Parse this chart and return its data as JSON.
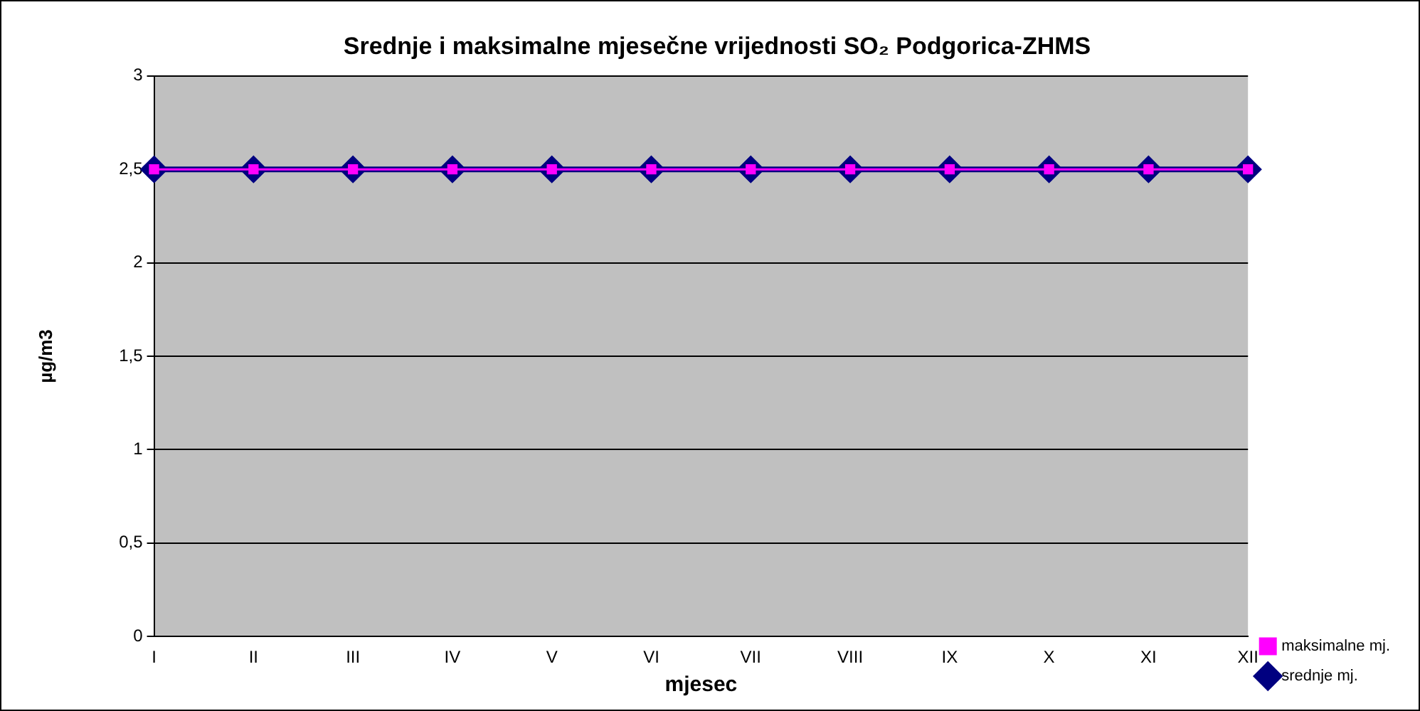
{
  "chart_data": {
    "type": "line",
    "title": "Srednje i maksimalne mjesečne vrijednosti SO₂ Podgorica-ZHMS",
    "xlabel": "mjesec",
    "ylabel": "µg/m3",
    "categories": [
      "I",
      "II",
      "III",
      "IV",
      "V",
      "VI",
      "VII",
      "VIII",
      "IX",
      "X",
      "XI",
      "XII"
    ],
    "series": [
      {
        "name": "srednje mj.",
        "color": "#000080",
        "marker": "diamond",
        "values": [
          2.5,
          2.5,
          2.5,
          2.5,
          2.5,
          2.5,
          2.5,
          2.5,
          2.5,
          2.5,
          2.5,
          2.5
        ]
      },
      {
        "name": "maksimalne mj.",
        "color": "#ff00ff",
        "marker": "square",
        "values": [
          2.5,
          2.5,
          2.5,
          2.5,
          2.5,
          2.5,
          2.5,
          2.5,
          2.5,
          2.5,
          2.5,
          2.5
        ]
      }
    ],
    "ylim": [
      0,
      3
    ],
    "yticks": [
      0,
      {
        "value": 0.5,
        "label": "0,5"
      },
      1,
      {
        "value": 1.5,
        "label": "1,5"
      },
      2,
      {
        "value": 2.5,
        "label": "2,5"
      },
      3
    ],
    "grid": "y",
    "legend": "bottom right"
  }
}
